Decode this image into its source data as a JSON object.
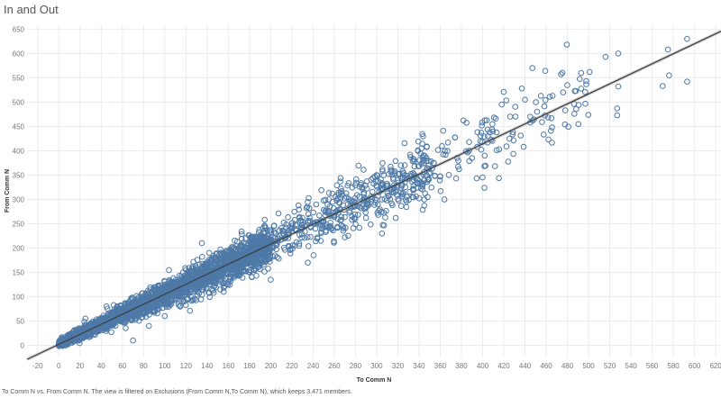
{
  "title": "In and Out",
  "caption": "To Comm N vs. From Comm N. The view is filtered on Exclusions (From Comm N,To Comm N), which keeps 3,471 members.",
  "colors": {
    "marker": "#4e79a7",
    "trend": "#3c3c3c",
    "band": "#aaaaaa",
    "grid": "#ececec",
    "tick": "#777777"
  },
  "chart_data": {
    "type": "scatter",
    "title": "In and Out",
    "xlabel": "To Comm N",
    "ylabel": "From Comm N",
    "xlim": [
      -30,
      625
    ],
    "ylim": [
      -25,
      660
    ],
    "xticks": [
      -20,
      0,
      20,
      40,
      60,
      80,
      100,
      120,
      140,
      160,
      180,
      200,
      220,
      240,
      260,
      280,
      300,
      320,
      340,
      360,
      380,
      400,
      420,
      440,
      460,
      480,
      500,
      520,
      540,
      560,
      580,
      600,
      620
    ],
    "yticks": [
      0,
      50,
      100,
      150,
      200,
      250,
      300,
      350,
      400,
      450,
      500,
      550,
      600,
      650
    ],
    "grid": true,
    "marker": "hollow-circle",
    "member_count": 3471,
    "trend_line": {
      "slope": 1.03,
      "intercept": 2
    },
    "points": [
      [
        593,
        630
      ],
      [
        593,
        542
      ],
      [
        576,
        555
      ],
      [
        575,
        608
      ],
      [
        570,
        533
      ],
      [
        528,
        600
      ],
      [
        528,
        532
      ],
      [
        527,
        487
      ],
      [
        527,
        473
      ],
      [
        516,
        593
      ],
      [
        501,
        562
      ],
      [
        493,
        560
      ],
      [
        488,
        523
      ],
      [
        478,
        483
      ],
      [
        476,
        520
      ],
      [
        474,
        557
      ],
      [
        466,
        513
      ],
      [
        455,
        513
      ],
      [
        447,
        570
      ],
      [
        440,
        505
      ],
      [
        437,
        528
      ],
      [
        426,
        470
      ],
      [
        418,
        495
      ],
      [
        405,
        430
      ],
      [
        400,
        345
      ],
      [
        395,
        408
      ],
      [
        390,
        385
      ],
      [
        375,
        343
      ],
      [
        365,
        392
      ],
      [
        355,
        348
      ],
      [
        345,
        300
      ],
      [
        335,
        340
      ],
      [
        325,
        345
      ],
      [
        318,
        262
      ],
      [
        305,
        230
      ],
      [
        300,
        350
      ],
      [
        290,
        262
      ],
      [
        285,
        330
      ],
      [
        270,
        222
      ],
      [
        250,
        255
      ],
      [
        235,
        170
      ],
      [
        220,
        240
      ],
      [
        200,
        135
      ],
      [
        180,
        150
      ],
      [
        160,
        130
      ],
      [
        150,
        175
      ],
      [
        135,
        210
      ],
      [
        120,
        155
      ],
      [
        100,
        60
      ],
      [
        85,
        40
      ],
      [
        70,
        10
      ],
      [
        60,
        55
      ],
      [
        45,
        80
      ],
      [
        30,
        45
      ],
      [
        25,
        55
      ],
      [
        15,
        20
      ],
      [
        10,
        8
      ],
      [
        5,
        5
      ]
    ]
  }
}
